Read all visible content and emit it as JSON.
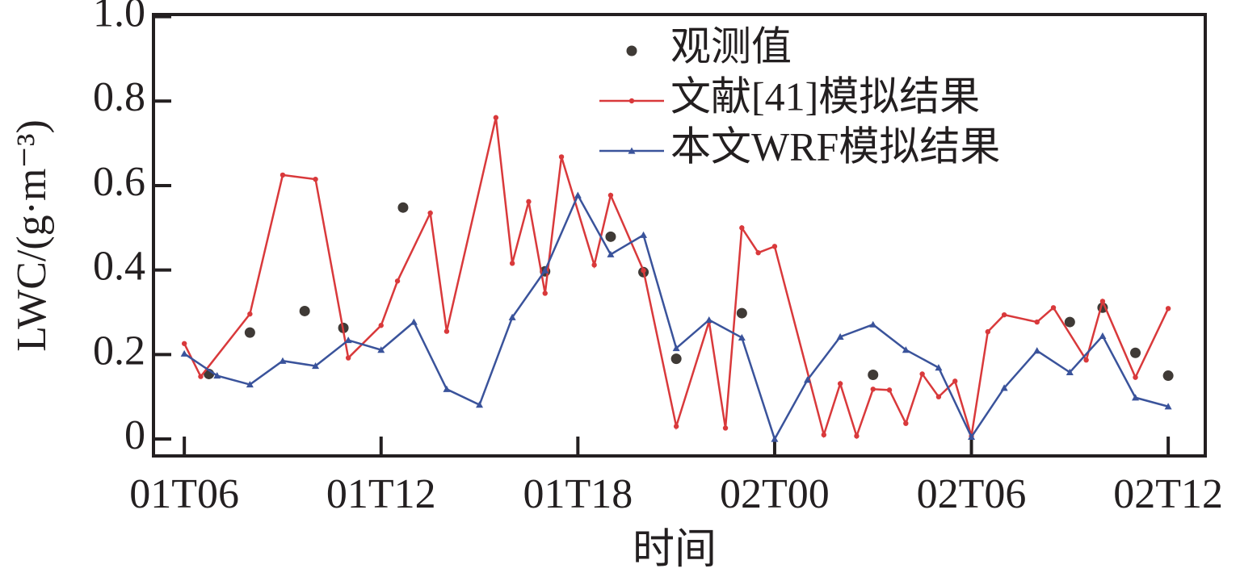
{
  "chart_data": {
    "type": "line",
    "xlabel": "时间",
    "ylabel": "LWC/(g·m⁻³)",
    "xlim": [
      5.06,
      37.13
    ],
    "ylim": [
      -0.04,
      1.005
    ],
    "xticks": [
      {
        "value": 6,
        "label": "01T06"
      },
      {
        "value": 12,
        "label": "01T12"
      },
      {
        "value": 18,
        "label": "01T18"
      },
      {
        "value": 24,
        "label": "02T00"
      },
      {
        "value": 30,
        "label": "02T06"
      },
      {
        "value": 36,
        "label": "02T12"
      }
    ],
    "yticks": [
      0,
      0.2,
      0.4,
      0.6,
      0.8,
      {
        "value": 1,
        "label": "1.0"
      }
    ],
    "legend_loc": "upper right",
    "series": [
      {
        "name": "观测值",
        "color": "#3f3a36",
        "mode": "markers",
        "marker": "circle",
        "x": [
          6.75,
          8,
          9.67,
          10.85,
          12.67,
          17,
          19,
          20,
          21,
          23,
          27,
          33,
          34,
          35,
          36
        ],
        "values": [
          0.154,
          0.252,
          0.303,
          0.263,
          0.548,
          0.397,
          0.479,
          0.395,
          0.19,
          0.298,
          0.152,
          0.277,
          0.311,
          0.204,
          0.15
        ]
      },
      {
        "name": "文献[41]模拟结果",
        "color": "#d9393b",
        "mode": "lines+markers",
        "marker": "circle",
        "x": [
          6,
          6.5,
          8,
          9,
          10,
          11,
          12,
          12.5,
          13.5,
          14,
          15.5,
          16,
          16.5,
          17,
          17.5,
          18.5,
          19,
          20,
          21,
          22,
          22.5,
          23,
          23.5,
          24,
          25.5,
          26,
          26.5,
          27,
          27.5,
          28,
          28.5,
          29,
          29.5,
          30,
          30.5,
          31,
          32,
          32.5,
          33.5,
          34,
          35,
          36
        ],
        "values": [
          0.226,
          0.148,
          0.296,
          0.625,
          0.615,
          0.192,
          0.269,
          0.374,
          0.535,
          0.255,
          0.761,
          0.416,
          0.562,
          0.345,
          0.668,
          0.412,
          0.577,
          0.399,
          0.03,
          0.278,
          0.026,
          0.5,
          0.441,
          0.456,
          0.01,
          0.131,
          0.007,
          0.118,
          0.116,
          0.037,
          0.154,
          0.1,
          0.137,
          0.007,
          0.254,
          0.294,
          0.277,
          0.311,
          0.187,
          0.326,
          0.146,
          0.309
        ]
      },
      {
        "name": "本文WRF模拟结果",
        "color": "#3a539b",
        "mode": "lines+markers",
        "marker": "triangle",
        "x": [
          6,
          7,
          8,
          9,
          10,
          11,
          12,
          13,
          14,
          15,
          16,
          17,
          18,
          19,
          20,
          21,
          22,
          23,
          24,
          25,
          26,
          27,
          28,
          29,
          30,
          31,
          32,
          33,
          34,
          35,
          36
        ],
        "values": [
          0.202,
          0.15,
          0.129,
          0.185,
          0.173,
          0.234,
          0.211,
          0.277,
          0.118,
          0.081,
          0.288,
          0.399,
          0.577,
          0.437,
          0.483,
          0.215,
          0.282,
          0.24,
          0,
          0.14,
          0.242,
          0.271,
          0.211,
          0.169,
          0.005,
          0.121,
          0.209,
          0.158,
          0.244,
          0.098,
          0.077
        ]
      }
    ]
  }
}
